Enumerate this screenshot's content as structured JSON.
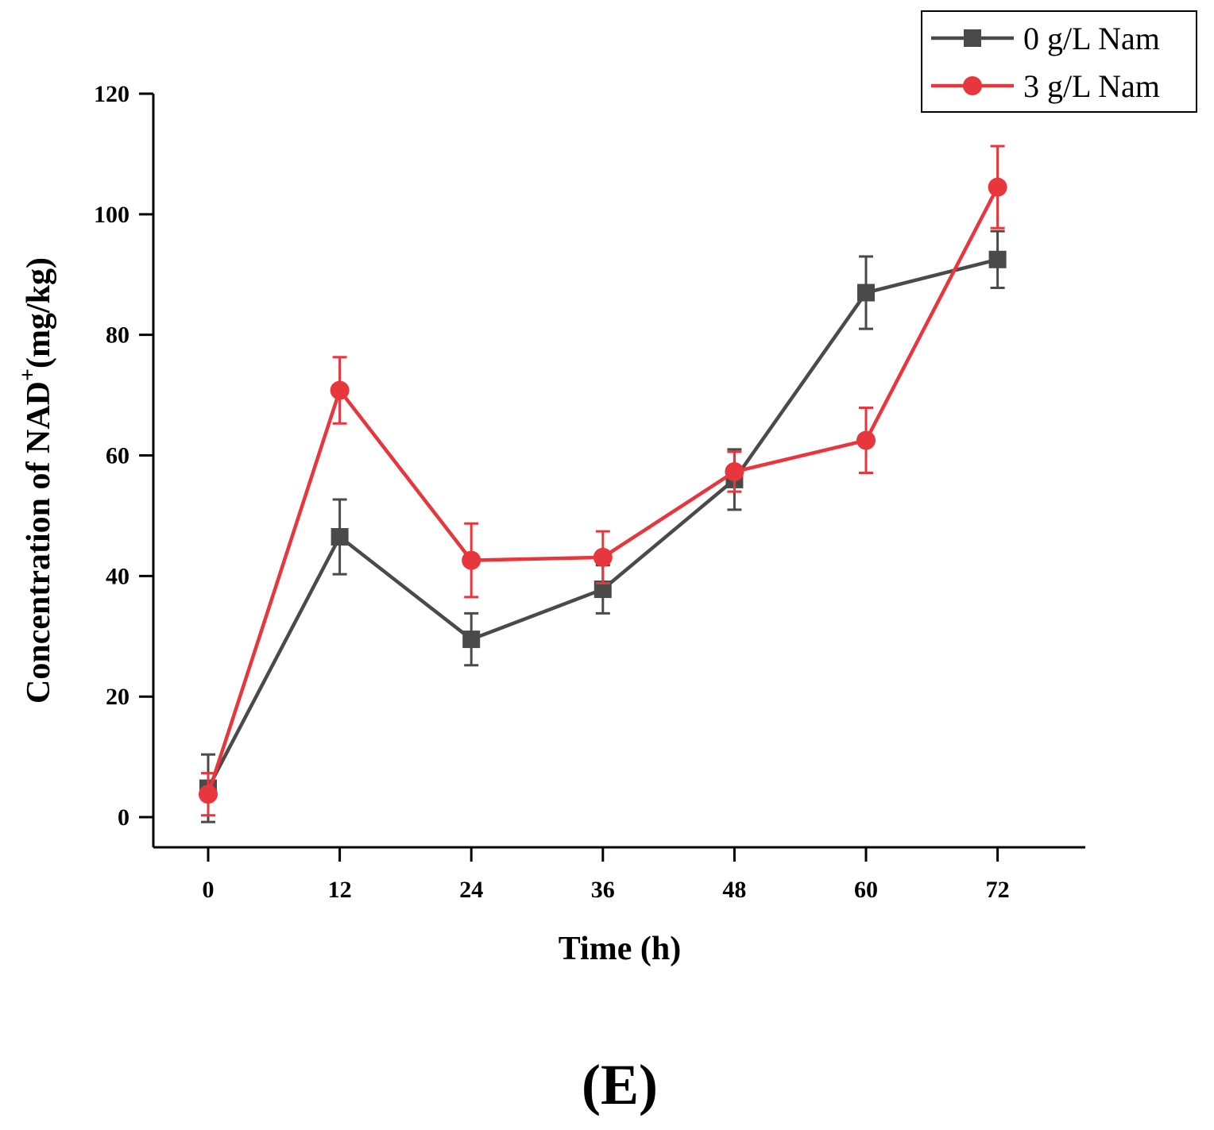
{
  "chart_data": {
    "type": "line",
    "xlabel": "Time (h)",
    "ylabel": "Concentration of NAD",
    "ylabel_superscript": "+",
    "ylabel_unit": "(mg/kg)",
    "panel_label": "(E)",
    "x": [
      0,
      12,
      24,
      36,
      48,
      60,
      72
    ],
    "x_tick_labels": [
      "0",
      "12",
      "24",
      "36",
      "48",
      "60",
      "72"
    ],
    "y_ticks": [
      0,
      20,
      40,
      60,
      80,
      100,
      120
    ],
    "y_tick_labels": [
      "0",
      "20",
      "40",
      "60",
      "80",
      "100",
      "120"
    ],
    "xlim": [
      -5,
      80
    ],
    "ylim": [
      -5,
      120
    ],
    "grid": false,
    "legend_position": "top-right",
    "series": [
      {
        "name": "0 g/L Nam",
        "color": "#4a4a4a",
        "marker": "square",
        "values": [
          4.8,
          46.5,
          29.5,
          37.8,
          56.0,
          87.0,
          92.5
        ],
        "errors": [
          5.6,
          6.2,
          4.3,
          4.0,
          5.0,
          6.0,
          4.7
        ]
      },
      {
        "name": "3 g/L Nam",
        "color": "#e8363d",
        "marker": "circle",
        "values": [
          3.8,
          70.8,
          42.6,
          43.1,
          57.3,
          62.5,
          104.5
        ],
        "errors": [
          3.5,
          5.5,
          6.1,
          4.3,
          3.3,
          5.4,
          6.8
        ]
      }
    ]
  }
}
